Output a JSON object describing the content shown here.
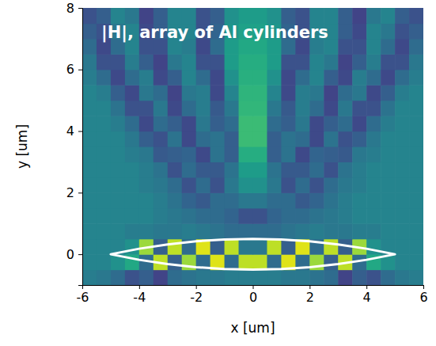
{
  "chart_data": {
    "type": "heatmap",
    "title": "|H|, array of Al cylinders",
    "x_label": "x [um]",
    "y_label": "y [um]",
    "xlim": [
      -6,
      6
    ],
    "ylim": [
      -1,
      8
    ],
    "xticks": [
      -6,
      -4,
      -2,
      0,
      2,
      4,
      6
    ],
    "yticks": [
      0,
      2,
      4,
      6,
      8
    ],
    "color": "viridis",
    "zlim": [
      0,
      1
    ],
    "x": [
      -5.75,
      -5.25,
      -4.75,
      -4.25,
      -3.75,
      -3.25,
      -2.75,
      -2.25,
      -1.75,
      -1.25,
      -0.75,
      -0.25,
      0.25,
      0.75,
      1.25,
      1.75,
      2.25,
      2.75,
      3.25,
      3.75,
      4.25,
      4.75,
      5.25,
      5.75
    ],
    "y": [
      -0.75,
      -0.25,
      0.25,
      0.75,
      1.25,
      1.75,
      2.25,
      2.75,
      3.25,
      3.75,
      4.25,
      4.75,
      5.25,
      5.75,
      6.25,
      6.75,
      7.25,
      7.75
    ],
    "z": [
      [
        0.42,
        0.4,
        0.35,
        0.25,
        0.3,
        0.2,
        0.35,
        0.38,
        0.4,
        0.4,
        0.42,
        0.42,
        0.42,
        0.42,
        0.4,
        0.4,
        0.38,
        0.35,
        0.2,
        0.3,
        0.25,
        0.35,
        0.4,
        0.42
      ],
      [
        0.45,
        0.45,
        0.5,
        0.6,
        0.35,
        0.9,
        0.3,
        0.85,
        0.35,
        0.95,
        0.35,
        0.9,
        0.9,
        0.35,
        0.95,
        0.35,
        0.85,
        0.3,
        0.9,
        0.35,
        0.6,
        0.5,
        0.45,
        0.45
      ],
      [
        0.45,
        0.45,
        0.45,
        0.5,
        0.85,
        0.3,
        0.9,
        0.35,
        0.95,
        0.3,
        0.9,
        0.4,
        0.4,
        0.9,
        0.3,
        0.95,
        0.35,
        0.9,
        0.3,
        0.85,
        0.5,
        0.45,
        0.45,
        0.45
      ],
      [
        0.45,
        0.45,
        0.45,
        0.42,
        0.42,
        0.4,
        0.4,
        0.42,
        0.4,
        0.38,
        0.35,
        0.35,
        0.35,
        0.35,
        0.38,
        0.4,
        0.42,
        0.4,
        0.4,
        0.42,
        0.42,
        0.45,
        0.45,
        0.45
      ],
      [
        0.45,
        0.45,
        0.45,
        0.45,
        0.45,
        0.42,
        0.4,
        0.38,
        0.35,
        0.35,
        0.32,
        0.25,
        0.25,
        0.32,
        0.35,
        0.35,
        0.38,
        0.4,
        0.42,
        0.45,
        0.45,
        0.45,
        0.45,
        0.45
      ],
      [
        0.45,
        0.45,
        0.45,
        0.45,
        0.45,
        0.42,
        0.38,
        0.32,
        0.28,
        0.35,
        0.35,
        0.4,
        0.4,
        0.35,
        0.35,
        0.28,
        0.32,
        0.38,
        0.42,
        0.45,
        0.45,
        0.45,
        0.45,
        0.45
      ],
      [
        0.45,
        0.45,
        0.45,
        0.45,
        0.42,
        0.4,
        0.35,
        0.25,
        0.35,
        0.25,
        0.4,
        0.5,
        0.5,
        0.4,
        0.25,
        0.35,
        0.25,
        0.35,
        0.4,
        0.42,
        0.45,
        0.45,
        0.45,
        0.45
      ],
      [
        0.45,
        0.45,
        0.45,
        0.45,
        0.42,
        0.38,
        0.25,
        0.35,
        0.28,
        0.28,
        0.38,
        0.55,
        0.55,
        0.38,
        0.28,
        0.28,
        0.35,
        0.25,
        0.38,
        0.42,
        0.45,
        0.45,
        0.45,
        0.45
      ],
      [
        0.45,
        0.45,
        0.45,
        0.42,
        0.4,
        0.28,
        0.3,
        0.32,
        0.22,
        0.38,
        0.3,
        0.62,
        0.62,
        0.3,
        0.38,
        0.22,
        0.32,
        0.3,
        0.28,
        0.4,
        0.42,
        0.45,
        0.45,
        0.45
      ],
      [
        0.45,
        0.45,
        0.45,
        0.4,
        0.3,
        0.25,
        0.38,
        0.22,
        0.35,
        0.38,
        0.3,
        0.68,
        0.68,
        0.3,
        0.38,
        0.35,
        0.22,
        0.38,
        0.25,
        0.3,
        0.4,
        0.45,
        0.45,
        0.45
      ],
      [
        0.45,
        0.45,
        0.42,
        0.35,
        0.22,
        0.35,
        0.3,
        0.22,
        0.4,
        0.3,
        0.35,
        0.68,
        0.68,
        0.35,
        0.3,
        0.4,
        0.22,
        0.3,
        0.35,
        0.22,
        0.35,
        0.42,
        0.45,
        0.45
      ],
      [
        0.45,
        0.45,
        0.38,
        0.25,
        0.25,
        0.4,
        0.22,
        0.35,
        0.42,
        0.28,
        0.4,
        0.66,
        0.66,
        0.4,
        0.28,
        0.42,
        0.35,
        0.22,
        0.4,
        0.25,
        0.25,
        0.38,
        0.45,
        0.45
      ],
      [
        0.45,
        0.42,
        0.3,
        0.22,
        0.4,
        0.35,
        0.2,
        0.4,
        0.42,
        0.22,
        0.45,
        0.65,
        0.65,
        0.45,
        0.22,
        0.42,
        0.4,
        0.2,
        0.35,
        0.4,
        0.22,
        0.3,
        0.42,
        0.45
      ],
      [
        0.42,
        0.35,
        0.22,
        0.35,
        0.42,
        0.22,
        0.3,
        0.45,
        0.35,
        0.22,
        0.5,
        0.63,
        0.63,
        0.5,
        0.22,
        0.35,
        0.45,
        0.3,
        0.22,
        0.42,
        0.35,
        0.22,
        0.35,
        0.42
      ],
      [
        0.4,
        0.25,
        0.25,
        0.42,
        0.3,
        0.2,
        0.4,
        0.45,
        0.25,
        0.25,
        0.55,
        0.62,
        0.62,
        0.55,
        0.25,
        0.25,
        0.45,
        0.4,
        0.2,
        0.3,
        0.42,
        0.25,
        0.25,
        0.4
      ],
      [
        0.35,
        0.22,
        0.35,
        0.45,
        0.25,
        0.25,
        0.45,
        0.42,
        0.22,
        0.35,
        0.55,
        0.6,
        0.6,
        0.55,
        0.35,
        0.22,
        0.42,
        0.45,
        0.25,
        0.25,
        0.45,
        0.35,
        0.22,
        0.35
      ],
      [
        0.3,
        0.25,
        0.4,
        0.45,
        0.22,
        0.3,
        0.45,
        0.45,
        0.25,
        0.32,
        0.52,
        0.57,
        0.57,
        0.52,
        0.32,
        0.25,
        0.45,
        0.45,
        0.3,
        0.22,
        0.45,
        0.4,
        0.25,
        0.3
      ],
      [
        0.25,
        0.3,
        0.45,
        0.4,
        0.2,
        0.3,
        0.45,
        0.45,
        0.25,
        0.3,
        0.5,
        0.55,
        0.55,
        0.5,
        0.3,
        0.25,
        0.45,
        0.45,
        0.3,
        0.2,
        0.4,
        0.45,
        0.3,
        0.25
      ]
    ],
    "outline": {
      "x": [
        -5,
        -4,
        -3,
        -2,
        -1,
        0,
        1,
        2,
        3,
        4,
        5,
        4,
        3,
        2,
        1,
        0,
        -1,
        -2,
        -3,
        -4
      ],
      "y": [
        0,
        0.18,
        0.32,
        0.42,
        0.48,
        0.5,
        0.48,
        0.42,
        0.32,
        0.18,
        0,
        -0.18,
        -0.32,
        -0.42,
        -0.48,
        -0.5,
        -0.48,
        -0.42,
        -0.32,
        -0.18
      ]
    }
  }
}
